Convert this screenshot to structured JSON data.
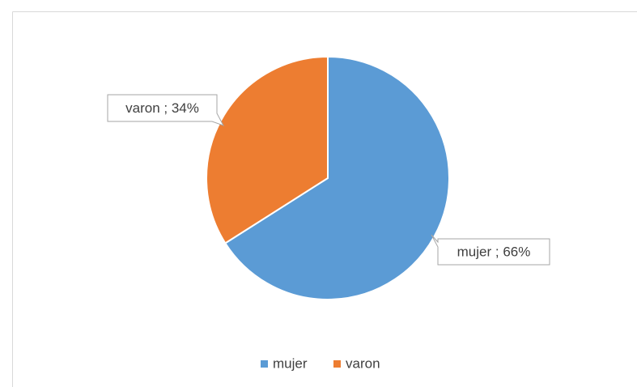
{
  "chart_data": {
    "type": "pie",
    "categories": [
      "mujer",
      "varon"
    ],
    "values": [
      66,
      34
    ],
    "value_labels": [
      "mujer ; 66%",
      "varon ; 34%"
    ],
    "colors": [
      "#5b9bd5",
      "#ed7d31"
    ],
    "legend": "bottom"
  }
}
